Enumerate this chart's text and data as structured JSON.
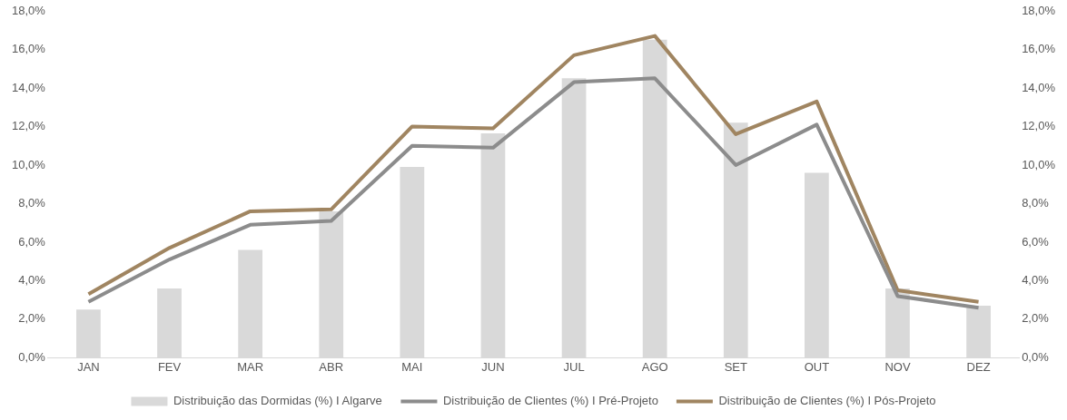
{
  "chart_data": {
    "type": "bar",
    "categories": [
      "JAN",
      "FEV",
      "MAR",
      "ABR",
      "MAI",
      "JUN",
      "JUL",
      "AGO",
      "SET",
      "OUT",
      "NOV",
      "DEZ"
    ],
    "series": [
      {
        "name": "Distribuição das Dormidas (%) I Algarve",
        "color": "#d9d9d9",
        "values": [
          2.5,
          3.6,
          5.6,
          7.6,
          9.9,
          11.65,
          14.5,
          16.5,
          12.2,
          9.6,
          3.6,
          2.7
        ]
      },
      {
        "name": "Distribuição de Clientes (%) I Pré-Projeto",
        "type": "line",
        "color": "#8c8c8c",
        "values": [
          2.9,
          5.1,
          6.9,
          7.1,
          11.0,
          10.9,
          14.3,
          14.5,
          10.0,
          12.1,
          3.2,
          2.6
        ]
      },
      {
        "name": "Distribuição de Clientes (%) I Pós-Projeto",
        "type": "line",
        "color": "#a08561",
        "values": [
          3.3,
          5.7,
          7.6,
          7.7,
          12.0,
          11.9,
          15.7,
          16.7,
          11.6,
          13.3,
          3.5,
          2.9
        ]
      }
    ],
    "ylim": [
      0,
      18
    ],
    "yticks": [
      {
        "value": 0,
        "label": "0,0%"
      },
      {
        "value": 2,
        "label": "2,0%"
      },
      {
        "value": 4,
        "label": "4,0%"
      },
      {
        "value": 6,
        "label": "6,0%"
      },
      {
        "value": 8,
        "label": "8,0%"
      },
      {
        "value": 10,
        "label": "10,0%"
      },
      {
        "value": 12,
        "label": "12,0%"
      },
      {
        "value": 14,
        "label": "14,0%"
      },
      {
        "value": 16,
        "label": "16,0%"
      },
      {
        "value": 18,
        "label": "18,0%"
      }
    ],
    "y2lim": [
      0,
      18
    ],
    "y2ticks": [
      {
        "value": 0,
        "label": "0,0%"
      },
      {
        "value": 2,
        "label": "2,0%"
      },
      {
        "value": 4,
        "label": "4,0%"
      },
      {
        "value": 6,
        "label": "6,0%"
      },
      {
        "value": 8,
        "label": "8,0%"
      },
      {
        "value": 10,
        "label": "10,0%"
      },
      {
        "value": 12,
        "label": "12,0%"
      },
      {
        "value": 14,
        "label": "14,0%"
      },
      {
        "value": 16,
        "label": "16,0%"
      },
      {
        "value": 18,
        "label": "18,0%"
      }
    ],
    "grid": false,
    "legend": "bottom",
    "line_style": "solid"
  }
}
